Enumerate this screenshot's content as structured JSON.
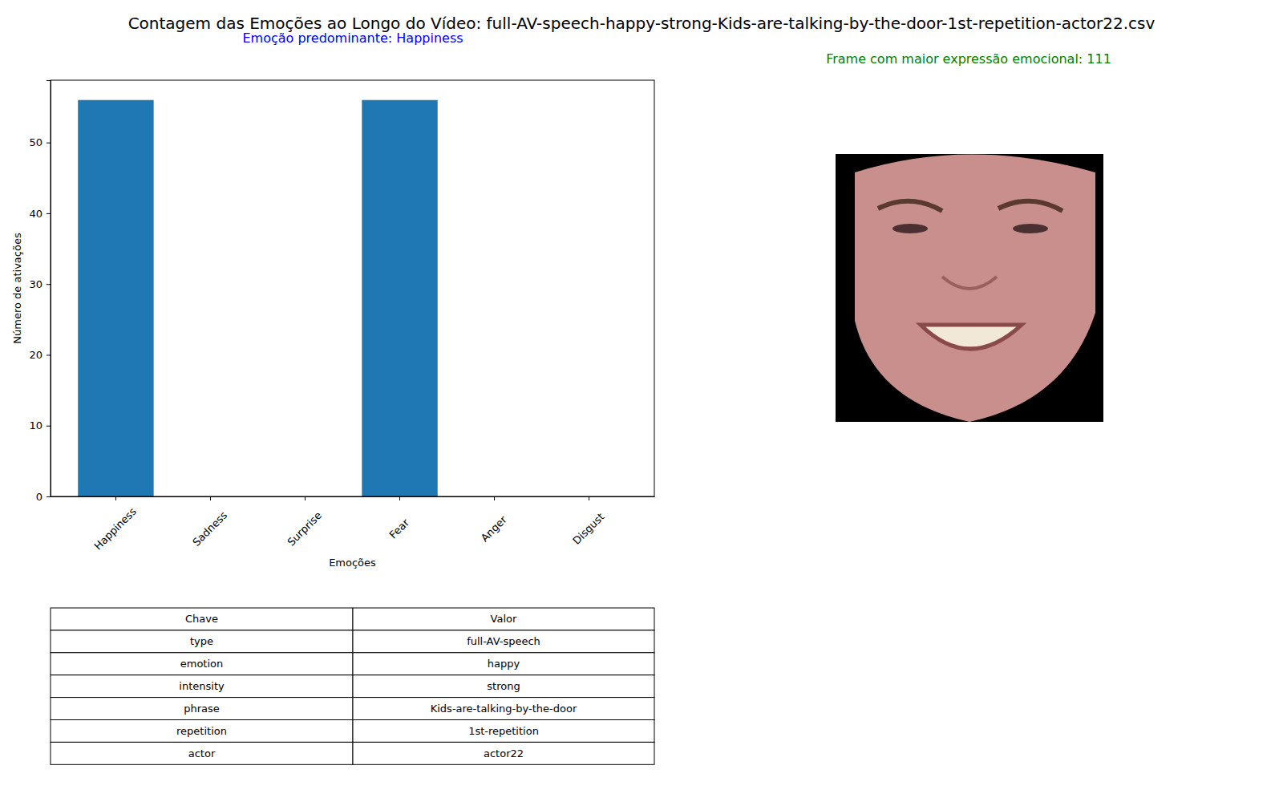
{
  "chart_data": {
    "type": "bar",
    "title": "Contagem das Emoções ao Longo do Vídeo: full-AV-speech-happy-strong-Kids-are-talking-by-the-door-1st-repetition-actor22.csv",
    "subtitle": "Emoção predominante: Happiness",
    "annotation": "Frame com maior expressão emocional: 111",
    "x_label": "Emoções",
    "y_label": "Número de ativações",
    "categories": [
      "Happiness",
      "Sadness",
      "Surprise",
      "Fear",
      "Anger",
      "Disgust"
    ],
    "values": [
      56,
      0,
      0,
      56,
      0,
      0
    ],
    "color": "#1f77b4",
    "ylim": [
      0,
      58.8
    ],
    "yticks": [
      0,
      10,
      20,
      30,
      40,
      50
    ],
    "grid": false
  },
  "table": {
    "header": [
      "Chave",
      "Valor"
    ],
    "rows": [
      [
        "type",
        "full-AV-speech"
      ],
      [
        "emotion",
        "happy"
      ],
      [
        "intensity",
        "strong"
      ],
      [
        "phrase",
        "Kids-are-talking-by-the-door"
      ],
      [
        "repetition",
        "1st-repetition"
      ],
      [
        "actor",
        "actor22"
      ]
    ]
  }
}
